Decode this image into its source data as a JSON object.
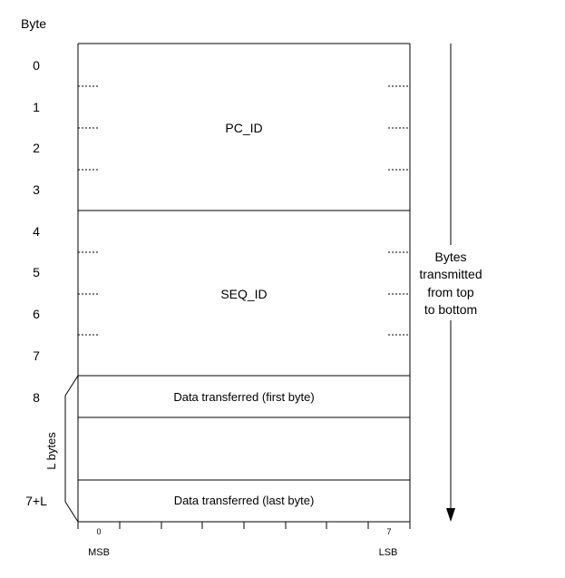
{
  "header": {
    "byte_label": "Byte"
  },
  "byte_rows": [
    "0",
    "1",
    "2",
    "3",
    "4",
    "5",
    "6",
    "7",
    "8",
    "7+L"
  ],
  "fields": {
    "pc_id": "PC_ID",
    "seq_id": "SEQ_ID",
    "data_first": "Data transferred (first byte)",
    "data_last": "Data transferred (last byte)"
  },
  "length_brace": {
    "label": "L bytes"
  },
  "direction_note": {
    "lines": [
      "Bytes",
      "transmitted",
      "from top",
      "to bottom"
    ]
  },
  "bit_axis": {
    "first_bit": "0",
    "last_bit": "7",
    "msb_label": "MSB",
    "lsb_label": "LSB"
  }
}
